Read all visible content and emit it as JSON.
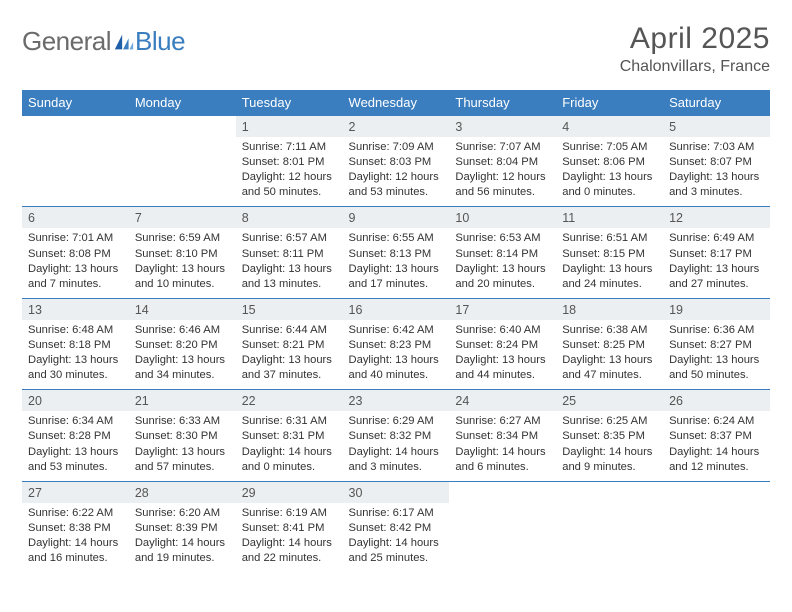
{
  "brand": {
    "general": "General",
    "blue": "Blue"
  },
  "header": {
    "month_title": "April 2025",
    "location": "Chalonvillars, France"
  },
  "colors": {
    "header_bg": "#3a7ebf",
    "daynum_bg": "#eceff1",
    "row_border": "#3a7ebf",
    "text": "#333333",
    "title_text": "#555555",
    "logo_gray": "#6b6b6b",
    "logo_blue": "#3a7ebf"
  },
  "calendar": {
    "day_labels": [
      "Sunday",
      "Monday",
      "Tuesday",
      "Wednesday",
      "Thursday",
      "Friday",
      "Saturday"
    ],
    "weeks": [
      [
        null,
        null,
        {
          "n": "1",
          "sunrise": "Sunrise: 7:11 AM",
          "sunset": "Sunset: 8:01 PM",
          "daylight": "Daylight: 12 hours and 50 minutes."
        },
        {
          "n": "2",
          "sunrise": "Sunrise: 7:09 AM",
          "sunset": "Sunset: 8:03 PM",
          "daylight": "Daylight: 12 hours and 53 minutes."
        },
        {
          "n": "3",
          "sunrise": "Sunrise: 7:07 AM",
          "sunset": "Sunset: 8:04 PM",
          "daylight": "Daylight: 12 hours and 56 minutes."
        },
        {
          "n": "4",
          "sunrise": "Sunrise: 7:05 AM",
          "sunset": "Sunset: 8:06 PM",
          "daylight": "Daylight: 13 hours and 0 minutes."
        },
        {
          "n": "5",
          "sunrise": "Sunrise: 7:03 AM",
          "sunset": "Sunset: 8:07 PM",
          "daylight": "Daylight: 13 hours and 3 minutes."
        }
      ],
      [
        {
          "n": "6",
          "sunrise": "Sunrise: 7:01 AM",
          "sunset": "Sunset: 8:08 PM",
          "daylight": "Daylight: 13 hours and 7 minutes."
        },
        {
          "n": "7",
          "sunrise": "Sunrise: 6:59 AM",
          "sunset": "Sunset: 8:10 PM",
          "daylight": "Daylight: 13 hours and 10 minutes."
        },
        {
          "n": "8",
          "sunrise": "Sunrise: 6:57 AM",
          "sunset": "Sunset: 8:11 PM",
          "daylight": "Daylight: 13 hours and 13 minutes."
        },
        {
          "n": "9",
          "sunrise": "Sunrise: 6:55 AM",
          "sunset": "Sunset: 8:13 PM",
          "daylight": "Daylight: 13 hours and 17 minutes."
        },
        {
          "n": "10",
          "sunrise": "Sunrise: 6:53 AM",
          "sunset": "Sunset: 8:14 PM",
          "daylight": "Daylight: 13 hours and 20 minutes."
        },
        {
          "n": "11",
          "sunrise": "Sunrise: 6:51 AM",
          "sunset": "Sunset: 8:15 PM",
          "daylight": "Daylight: 13 hours and 24 minutes."
        },
        {
          "n": "12",
          "sunrise": "Sunrise: 6:49 AM",
          "sunset": "Sunset: 8:17 PM",
          "daylight": "Daylight: 13 hours and 27 minutes."
        }
      ],
      [
        {
          "n": "13",
          "sunrise": "Sunrise: 6:48 AM",
          "sunset": "Sunset: 8:18 PM",
          "daylight": "Daylight: 13 hours and 30 minutes."
        },
        {
          "n": "14",
          "sunrise": "Sunrise: 6:46 AM",
          "sunset": "Sunset: 8:20 PM",
          "daylight": "Daylight: 13 hours and 34 minutes."
        },
        {
          "n": "15",
          "sunrise": "Sunrise: 6:44 AM",
          "sunset": "Sunset: 8:21 PM",
          "daylight": "Daylight: 13 hours and 37 minutes."
        },
        {
          "n": "16",
          "sunrise": "Sunrise: 6:42 AM",
          "sunset": "Sunset: 8:23 PM",
          "daylight": "Daylight: 13 hours and 40 minutes."
        },
        {
          "n": "17",
          "sunrise": "Sunrise: 6:40 AM",
          "sunset": "Sunset: 8:24 PM",
          "daylight": "Daylight: 13 hours and 44 minutes."
        },
        {
          "n": "18",
          "sunrise": "Sunrise: 6:38 AM",
          "sunset": "Sunset: 8:25 PM",
          "daylight": "Daylight: 13 hours and 47 minutes."
        },
        {
          "n": "19",
          "sunrise": "Sunrise: 6:36 AM",
          "sunset": "Sunset: 8:27 PM",
          "daylight": "Daylight: 13 hours and 50 minutes."
        }
      ],
      [
        {
          "n": "20",
          "sunrise": "Sunrise: 6:34 AM",
          "sunset": "Sunset: 8:28 PM",
          "daylight": "Daylight: 13 hours and 53 minutes."
        },
        {
          "n": "21",
          "sunrise": "Sunrise: 6:33 AM",
          "sunset": "Sunset: 8:30 PM",
          "daylight": "Daylight: 13 hours and 57 minutes."
        },
        {
          "n": "22",
          "sunrise": "Sunrise: 6:31 AM",
          "sunset": "Sunset: 8:31 PM",
          "daylight": "Daylight: 14 hours and 0 minutes."
        },
        {
          "n": "23",
          "sunrise": "Sunrise: 6:29 AM",
          "sunset": "Sunset: 8:32 PM",
          "daylight": "Daylight: 14 hours and 3 minutes."
        },
        {
          "n": "24",
          "sunrise": "Sunrise: 6:27 AM",
          "sunset": "Sunset: 8:34 PM",
          "daylight": "Daylight: 14 hours and 6 minutes."
        },
        {
          "n": "25",
          "sunrise": "Sunrise: 6:25 AM",
          "sunset": "Sunset: 8:35 PM",
          "daylight": "Daylight: 14 hours and 9 minutes."
        },
        {
          "n": "26",
          "sunrise": "Sunrise: 6:24 AM",
          "sunset": "Sunset: 8:37 PM",
          "daylight": "Daylight: 14 hours and 12 minutes."
        }
      ],
      [
        {
          "n": "27",
          "sunrise": "Sunrise: 6:22 AM",
          "sunset": "Sunset: 8:38 PM",
          "daylight": "Daylight: 14 hours and 16 minutes."
        },
        {
          "n": "28",
          "sunrise": "Sunrise: 6:20 AM",
          "sunset": "Sunset: 8:39 PM",
          "daylight": "Daylight: 14 hours and 19 minutes."
        },
        {
          "n": "29",
          "sunrise": "Sunrise: 6:19 AM",
          "sunset": "Sunset: 8:41 PM",
          "daylight": "Daylight: 14 hours and 22 minutes."
        },
        {
          "n": "30",
          "sunrise": "Sunrise: 6:17 AM",
          "sunset": "Sunset: 8:42 PM",
          "daylight": "Daylight: 14 hours and 25 minutes."
        },
        null,
        null,
        null
      ]
    ]
  }
}
